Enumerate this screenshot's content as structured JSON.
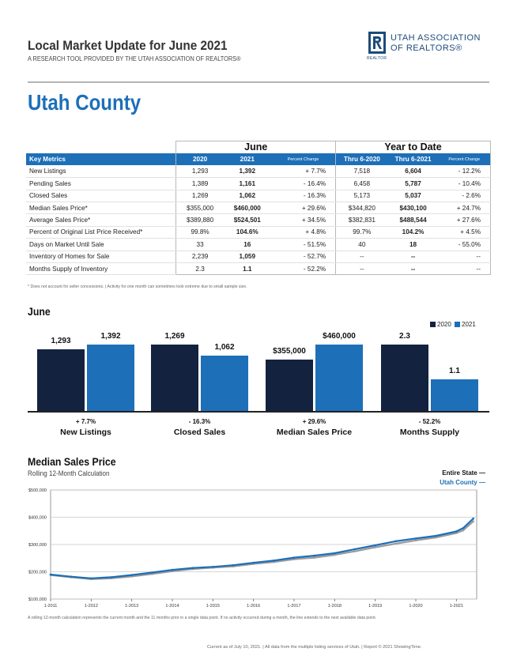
{
  "header": {
    "title": "Local Market Update for June 2021",
    "subtitle": "A RESEARCH TOOL PROVIDED BY THE UTAH ASSOCIATION OF REALTORS®",
    "logo_line1": "UTAH ASSOCIATION",
    "logo_line2": "OF REALTORS®",
    "logo_badge": "REALTOR",
    "logo_mark_icon": "realtor-r-logo-icon",
    "county": "Utah County"
  },
  "colors": {
    "accent_blue": "#1d6fb8",
    "navy": "#13223f",
    "gray_line": "#9b9b9b"
  },
  "metrics_table": {
    "group_june": "June",
    "group_ytd": "Year to Date",
    "columns": [
      "Key Metrics",
      "2020",
      "2021",
      "Percent Change",
      "Thru 6-2020",
      "Thru 6-2021",
      "Percent Change"
    ],
    "rows": [
      {
        "label": "New Listings",
        "june_2020": "1,293",
        "june_2021": "1,392",
        "june_pct": "+ 7.7%",
        "ytd_2020": "7,518",
        "ytd_2021": "6,604",
        "ytd_pct": "- 12.2%"
      },
      {
        "label": "Pending Sales",
        "june_2020": "1,389",
        "june_2021": "1,161",
        "june_pct": "- 16.4%",
        "ytd_2020": "6,458",
        "ytd_2021": "5,787",
        "ytd_pct": "- 10.4%"
      },
      {
        "label": "Closed Sales",
        "june_2020": "1,269",
        "june_2021": "1,062",
        "june_pct": "- 16.3%",
        "ytd_2020": "5,173",
        "ytd_2021": "5,037",
        "ytd_pct": "- 2.6%"
      },
      {
        "label": "Median Sales Price*",
        "june_2020": "$355,000",
        "june_2021": "$460,000",
        "june_pct": "+ 29.6%",
        "ytd_2020": "$344,820",
        "ytd_2021": "$430,100",
        "ytd_pct": "+ 24.7%"
      },
      {
        "label": "Average Sales Price*",
        "june_2020": "$389,880",
        "june_2021": "$524,501",
        "june_pct": "+ 34.5%",
        "ytd_2020": "$382,831",
        "ytd_2021": "$488,544",
        "ytd_pct": "+ 27.6%"
      },
      {
        "label": "Percent of Original List Price Received*",
        "june_2020": "99.8%",
        "june_2021": "104.6%",
        "june_pct": "+ 4.8%",
        "ytd_2020": "99.7%",
        "ytd_2021": "104.2%",
        "ytd_pct": "+ 4.5%"
      },
      {
        "label": "Days on Market Until Sale",
        "june_2020": "33",
        "june_2021": "16",
        "june_pct": "- 51.5%",
        "ytd_2020": "40",
        "ytd_2021": "18",
        "ytd_pct": "- 55.0%"
      },
      {
        "label": "Inventory of Homes for Sale",
        "june_2020": "2,239",
        "june_2021": "1,059",
        "june_pct": "- 52.7%",
        "ytd_2020": "--",
        "ytd_2021": "--",
        "ytd_pct": "--"
      },
      {
        "label": "Months Supply of Inventory",
        "june_2020": "2.3",
        "june_2021": "1.1",
        "june_pct": "- 52.2%",
        "ytd_2020": "--",
        "ytd_2021": "--",
        "ytd_pct": "--"
      }
    ],
    "footnote": "* Does not account for seller concessions.  |  Activity for one month can sometimes look extreme due to small sample size."
  },
  "chart_data": [
    {
      "type": "bar",
      "title": "June",
      "legend": [
        "2020",
        "2021"
      ],
      "legend_position": "top-right",
      "series": [
        {
          "name": "2020",
          "color": "#13223f"
        },
        {
          "name": "2021",
          "color": "#1d6fb8"
        }
      ],
      "groups": [
        {
          "label": "New Listings",
          "pct": "+ 7.7%",
          "values": [
            1293,
            1392
          ],
          "value_labels": [
            "1,293",
            "1,392"
          ]
        },
        {
          "label": "Closed Sales",
          "pct": "- 16.3%",
          "values": [
            1269,
            1062
          ],
          "value_labels": [
            "1,269",
            "1,062"
          ]
        },
        {
          "label": "Median Sales Price",
          "pct": "+ 29.6%",
          "values": [
            355000,
            460000
          ],
          "value_labels": [
            "$355,000",
            "$460,000"
          ]
        },
        {
          "label": "Months Supply",
          "pct": "- 52.2%",
          "values": [
            2.3,
            1.1
          ],
          "value_labels": [
            "2.3",
            "1.1"
          ]
        }
      ]
    },
    {
      "type": "line",
      "title": "Median Sales Price",
      "subtitle": "Rolling 12-Month Calculation",
      "ylim": [
        100000,
        500000
      ],
      "y_ticks": [
        100000,
        200000,
        300000,
        400000,
        500000
      ],
      "y_tick_labels": [
        "$100,000",
        "$200,000",
        "$300,000",
        "$400,000",
        "$500,000"
      ],
      "x_tick_labels": [
        "1-2011",
        "1-2012",
        "1-2013",
        "1-2014",
        "1-2015",
        "1-2016",
        "1-2017",
        "1-2018",
        "1-2019",
        "1-2020",
        "1-2021"
      ],
      "grid": true,
      "legend_position": "top-right",
      "x_dates": [
        "2011-01",
        "2011-07",
        "2012-01",
        "2012-07",
        "2013-01",
        "2013-07",
        "2014-01",
        "2014-07",
        "2015-01",
        "2015-07",
        "2016-01",
        "2016-07",
        "2017-01",
        "2017-07",
        "2018-01",
        "2018-07",
        "2019-01",
        "2019-07",
        "2020-01",
        "2020-07",
        "2021-01",
        "2021-03",
        "2021-06"
      ],
      "series": [
        {
          "name": "Entire State",
          "color": "#9b9b9b",
          "values": [
            188000,
            180000,
            173000,
            176000,
            183000,
            192000,
            202000,
            210000,
            215000,
            220000,
            229000,
            236000,
            246000,
            252000,
            262000,
            275000,
            290000,
            303000,
            315000,
            326000,
            342000,
            352000,
            385000
          ]
        },
        {
          "name": "Utah County",
          "color": "#1d6fb8",
          "values": [
            190000,
            182000,
            176000,
            180000,
            188000,
            197000,
            207000,
            214000,
            218000,
            224000,
            233000,
            241000,
            252000,
            259000,
            268000,
            283000,
            297000,
            312000,
            322000,
            332000,
            348000,
            360000,
            395000
          ]
        }
      ]
    }
  ],
  "line_chart_note": "A rolling 12-month calculation represents the current month and the 11 months prior in a single data point. If no activity occurred during a month, the line extends to the next available data point.",
  "footer": "Current as of July 10, 2021.  |  All data from the multiple listing services of Utah.  |  Report © 2021 ShowingTime."
}
